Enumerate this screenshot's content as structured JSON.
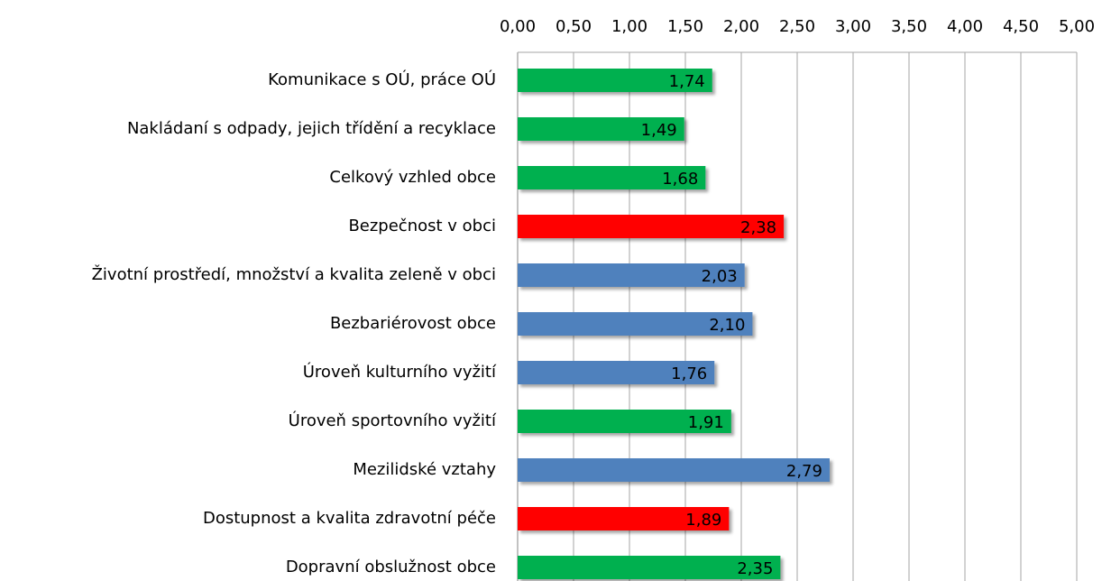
{
  "chart_data": {
    "type": "hbar",
    "categories": [
      "Komunikace s OÚ, práce OÚ",
      "Nakládaní s odpady, jejich třídění a recyklace",
      "Celkový vzhled obce",
      "Bezpečnost v obci",
      "Životní prostředí, množství a kvalita zeleně v obci",
      "Bezbariérovost obce",
      "Úroveň kulturního vyžití",
      "Úroveň sportovního vyžití",
      "Mezilidské vztahy",
      "Dostupnost a kvalita zdravotní péče",
      "Dopravní obslužnost obce"
    ],
    "values": [
      1.74,
      1.49,
      1.68,
      2.38,
      2.03,
      2.1,
      1.76,
      1.91,
      2.79,
      1.89,
      2.35
    ],
    "value_labels": [
      "1,74",
      "1,49",
      "1,68",
      "2,38",
      "2,03",
      "2,10",
      "1,76",
      "1,91",
      "2,79",
      "1,89",
      "2,35"
    ],
    "colors": [
      "#00b050",
      "#00b050",
      "#00b050",
      "#ff0000",
      "#4f81bd",
      "#4f81bd",
      "#4f81bd",
      "#00b050",
      "#4f81bd",
      "#ff0000",
      "#00b050"
    ],
    "xlim": [
      0,
      5
    ],
    "xticks": [
      {
        "value": 0,
        "label": "0,00"
      },
      {
        "value": 0.5,
        "label": "0,50"
      },
      {
        "value": 1,
        "label": "1,00"
      },
      {
        "value": 1.5,
        "label": "1,50"
      },
      {
        "value": 2,
        "label": "2,00"
      },
      {
        "value": 2.5,
        "label": "2,50"
      },
      {
        "value": 3,
        "label": "3,00"
      },
      {
        "value": 3.5,
        "label": "3,50"
      },
      {
        "value": 4,
        "label": "4,00"
      },
      {
        "value": 4.5,
        "label": "4,50"
      },
      {
        "value": 5,
        "label": "5,00"
      }
    ],
    "grid": true
  }
}
